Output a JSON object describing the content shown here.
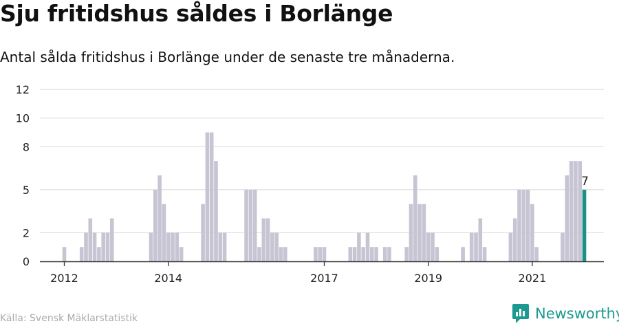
{
  "title": "Sju fritidshus såldes i Borlänge",
  "subtitle": "Antal sålda fritidshus i Borlänge under de senaste tre månaderna.",
  "source": "Källa: Svensk Mäklarstatistik",
  "brand": {
    "name": "Newsworthy"
  },
  "colors": {
    "bar": "#c7c5d3",
    "highlight": "#1a9187",
    "grid": "#dddddd",
    "axis": "#333333",
    "brand": "#1c9a91"
  },
  "chart_data": {
    "type": "bar",
    "title": "Sju fritidshus såldes i Borlänge",
    "xlabel": "",
    "ylabel": "",
    "ylim": [
      0,
      12
    ],
    "y_ticks": [
      0,
      2,
      5,
      8,
      10,
      12
    ],
    "x_ticks": [
      "2012",
      "2014",
      "2017",
      "2019",
      "2021"
    ],
    "x_tick_indices": [
      0,
      24,
      60,
      84,
      108
    ],
    "start_index": -1,
    "value_label": "7",
    "values": [
      1,
      0,
      0,
      0,
      1,
      2,
      3,
      2,
      1,
      2,
      2,
      3,
      0,
      0,
      0,
      null,
      null,
      null,
      null,
      0,
      2,
      5,
      6,
      4,
      2,
      2,
      2,
      1,
      null,
      null,
      null,
      0,
      4,
      9,
      9,
      7,
      2,
      2,
      0,
      0,
      0,
      0,
      5,
      5,
      5,
      1,
      3,
      3,
      2,
      2,
      1,
      1,
      null,
      null,
      null,
      null,
      null,
      0,
      1,
      1,
      1,
      0,
      null,
      null,
      null,
      null,
      1,
      1,
      2,
      1,
      2,
      1,
      1,
      0,
      1,
      1,
      0,
      null,
      null,
      1,
      4,
      6,
      4,
      4,
      2,
      2,
      1,
      0,
      0,
      null,
      0,
      0,
      1,
      0,
      2,
      2,
      3,
      1,
      0,
      null,
      null,
      0,
      0,
      2,
      3,
      5,
      5,
      5,
      4,
      1,
      0,
      0,
      null,
      null,
      0,
      2,
      6,
      7,
      7,
      7,
      5
    ]
  }
}
